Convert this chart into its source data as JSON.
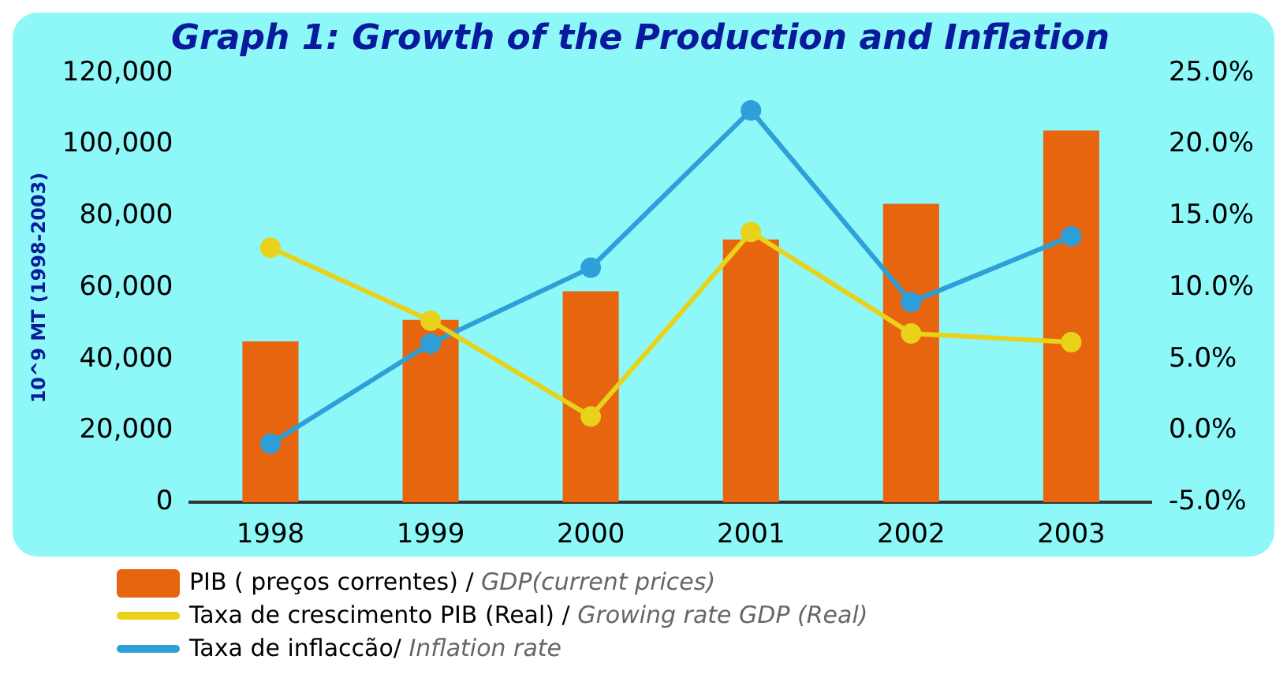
{
  "chart_data": {
    "type": "bar",
    "title": "Graph 1: Growth of the Production and Inflation",
    "ylabel": "10^9 MT (1998-2003)",
    "categories": [
      "1998",
      "1999",
      "2000",
      "2001",
      "2002",
      "2003"
    ],
    "series": [
      {
        "name": "PIB ( preços correntes) / GDP(current prices)",
        "color": "#e8650f",
        "values": [
          45000,
          51000,
          59000,
          73500,
          83500,
          104000
        ]
      },
      {
        "name": "Taxa de crescimento PIB (Real) / Growing rate GDP (Real)",
        "type": "line",
        "axis": "y2",
        "color": "#e8d21a",
        "values": [
          12.8,
          7.7,
          1.0,
          13.9,
          6.8,
          6.2
        ]
      },
      {
        "name": "Taxa de inflaccão/ Inflation rate",
        "type": "line",
        "axis": "y2",
        "color": "#2e9fd8",
        "values": [
          -0.9,
          6.1,
          11.4,
          22.4,
          9.0,
          13.6
        ]
      }
    ],
    "ylim": [
      0,
      120000
    ],
    "yticks": [
      {
        "value": 0,
        "label": "0"
      },
      {
        "value": 20000,
        "label": "20,000"
      },
      {
        "value": 40000,
        "label": "40,000"
      },
      {
        "value": 60000,
        "label": "60,000"
      },
      {
        "value": 80000,
        "label": "80,000"
      },
      {
        "value": 100000,
        "label": "100,000"
      },
      {
        "value": 120000,
        "label": "120,000"
      }
    ],
    "y2lim": [
      -5,
      25
    ],
    "y2ticks": [
      {
        "value": -5,
        "label": "-5.0%"
      },
      {
        "value": 0,
        "label": "0.0%"
      },
      {
        "value": 5,
        "label": "5.0%"
      },
      {
        "value": 10,
        "label": "10.0%"
      },
      {
        "value": 15,
        "label": "15.0%"
      },
      {
        "value": 20,
        "label": "20.0%"
      },
      {
        "value": 25,
        "label": "25.0%"
      }
    ],
    "grid": false,
    "legend": "bottom left",
    "marker": "circle",
    "line_style": "solid"
  }
}
